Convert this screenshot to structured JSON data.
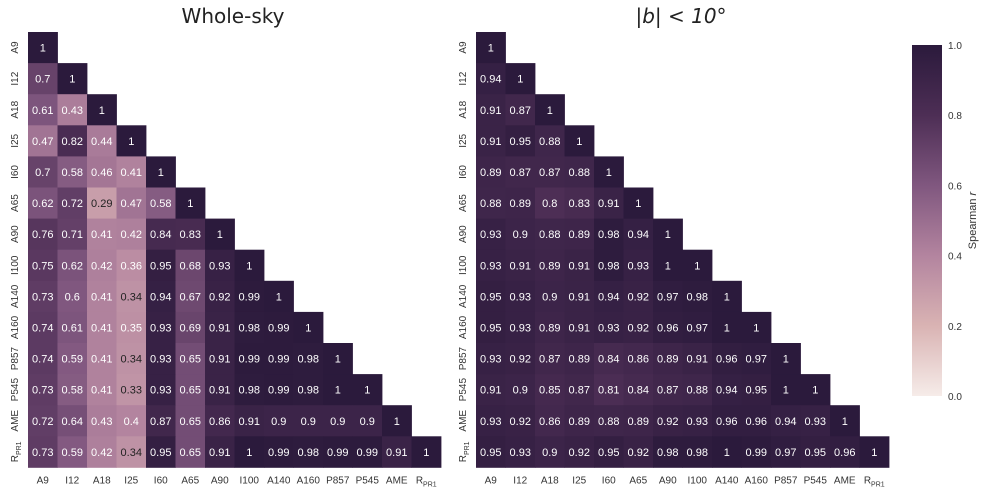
{
  "chart_data": [
    {
      "type": "heatmap",
      "title": "Whole-sky",
      "labels": [
        "A9",
        "I12",
        "A18",
        "I25",
        "I60",
        "A65",
        "A90",
        "I100",
        "A140",
        "A160",
        "P857",
        "P545",
        "AME",
        "R_PR1"
      ],
      "values": [
        [
          1
        ],
        [
          0.7,
          1
        ],
        [
          0.61,
          0.43,
          1
        ],
        [
          0.47,
          0.82,
          0.44,
          1
        ],
        [
          0.7,
          0.58,
          0.46,
          0.41,
          1
        ],
        [
          0.62,
          0.72,
          0.29,
          0.47,
          0.58,
          1
        ],
        [
          0.76,
          0.71,
          0.41,
          0.42,
          0.84,
          0.83,
          1
        ],
        [
          0.75,
          0.62,
          0.42,
          0.36,
          0.95,
          0.68,
          0.93,
          1
        ],
        [
          0.73,
          0.6,
          0.41,
          0.34,
          0.94,
          0.67,
          0.92,
          0.99,
          1
        ],
        [
          0.74,
          0.61,
          0.41,
          0.35,
          0.93,
          0.69,
          0.91,
          0.98,
          0.99,
          1
        ],
        [
          0.74,
          0.59,
          0.41,
          0.34,
          0.93,
          0.65,
          0.91,
          0.99,
          0.99,
          0.98,
          1
        ],
        [
          0.73,
          0.58,
          0.41,
          0.33,
          0.93,
          0.65,
          0.91,
          0.98,
          0.99,
          0.98,
          1,
          1
        ],
        [
          0.72,
          0.64,
          0.43,
          0.4,
          0.87,
          0.65,
          0.86,
          0.91,
          0.9,
          0.9,
          0.9,
          0.9,
          1
        ],
        [
          0.73,
          0.59,
          0.42,
          0.34,
          0.95,
          0.65,
          0.91,
          1,
          0.99,
          0.98,
          0.99,
          0.99,
          0.91,
          1
        ]
      ]
    },
    {
      "type": "heatmap",
      "title": "|b| < 10°",
      "labels": [
        "A9",
        "I12",
        "A18",
        "I25",
        "I60",
        "A65",
        "A90",
        "I100",
        "A140",
        "A160",
        "P857",
        "P545",
        "AME",
        "R_PR1"
      ],
      "values": [
        [
          1
        ],
        [
          0.94,
          1
        ],
        [
          0.91,
          0.87,
          1
        ],
        [
          0.91,
          0.95,
          0.88,
          1
        ],
        [
          0.89,
          0.87,
          0.87,
          0.88,
          1
        ],
        [
          0.88,
          0.89,
          0.8,
          0.83,
          0.91,
          1
        ],
        [
          0.93,
          0.9,
          0.88,
          0.89,
          0.98,
          0.94,
          1
        ],
        [
          0.93,
          0.91,
          0.89,
          0.91,
          0.98,
          0.93,
          1,
          1
        ],
        [
          0.95,
          0.93,
          0.9,
          0.91,
          0.94,
          0.92,
          0.97,
          0.98,
          1
        ],
        [
          0.95,
          0.93,
          0.89,
          0.91,
          0.93,
          0.92,
          0.96,
          0.97,
          1,
          1
        ],
        [
          0.93,
          0.92,
          0.87,
          0.89,
          0.84,
          0.86,
          0.89,
          0.91,
          0.96,
          0.97,
          1
        ],
        [
          0.91,
          0.9,
          0.85,
          0.87,
          0.81,
          0.84,
          0.87,
          0.88,
          0.94,
          0.95,
          1,
          1
        ],
        [
          0.93,
          0.92,
          0.86,
          0.89,
          0.88,
          0.89,
          0.92,
          0.93,
          0.96,
          0.96,
          0.94,
          0.93,
          1
        ],
        [
          0.95,
          0.93,
          0.9,
          0.92,
          0.95,
          0.92,
          0.98,
          0.98,
          1,
          0.99,
          0.97,
          0.95,
          0.96,
          1
        ]
      ]
    }
  ],
  "colorbar": {
    "label": "Spearman r",
    "ticks": [
      "0.0",
      "0.2",
      "0.4",
      "0.6",
      "0.8",
      "1.0"
    ],
    "range": [
      0,
      1
    ],
    "colors": [
      "#f6ece9",
      "#d9b3b3",
      "#b3849f",
      "#80577f",
      "#4d2e55",
      "#2b1a3c"
    ]
  }
}
